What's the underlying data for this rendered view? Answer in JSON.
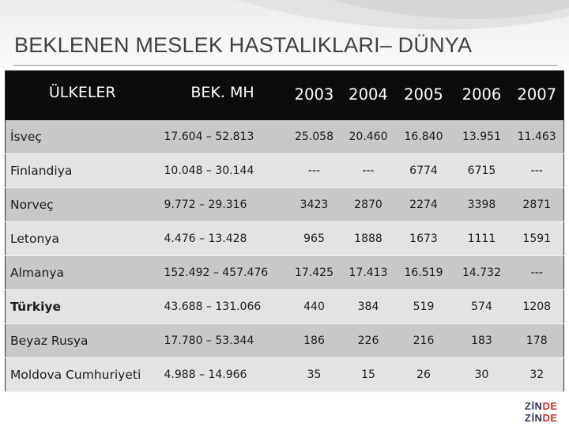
{
  "title": "BEKLENEN MESLEK HASTALIKLARI– DÜNYA",
  "table": {
    "headers": {
      "country": "ÜLKELER",
      "range": "BEK. MH",
      "years": [
        "2003",
        "2004",
        "2005",
        "2006",
        "2007"
      ]
    },
    "rows": [
      {
        "country": "İsveç",
        "range": "17.604 – 52.813",
        "values": [
          "25.058",
          "20.460",
          "16.840",
          "13.951",
          "11.463"
        ],
        "bold": false
      },
      {
        "country": "Finlandiya",
        "range": "10.048 – 30.144",
        "values": [
          "---",
          "---",
          "6774",
          "6715",
          "---"
        ],
        "bold": false
      },
      {
        "country": "Norveç",
        "range": "9.772 – 29.316",
        "values": [
          "3423",
          "2870",
          "2274",
          "3398",
          "2871"
        ],
        "bold": false
      },
      {
        "country": "Letonya",
        "range": "4.476 – 13.428",
        "values": [
          "965",
          "1888",
          "1673",
          "1111",
          "1591"
        ],
        "bold": false
      },
      {
        "country": "Almanya",
        "range": "152.492 – 457.476",
        "values": [
          "17.425",
          "17.413",
          "16.519",
          "14.732",
          "---"
        ],
        "bold": false
      },
      {
        "country": "Türkiye",
        "range": "43.688 – 131.066",
        "values": [
          "440",
          "384",
          "519",
          "574",
          "1208"
        ],
        "bold": true
      },
      {
        "country": "Beyaz Rusya",
        "range": "17.780 – 53.344",
        "values": [
          "186",
          "226",
          "216",
          "183",
          "178"
        ],
        "bold": false
      },
      {
        "country": "Moldova Cumhuriyeti",
        "range": "4.988 – 14.966",
        "values": [
          "35",
          "15",
          "26",
          "30",
          "32"
        ],
        "bold": false
      }
    ]
  },
  "logo": {
    "line1_a": "ZİN",
    "line1_b": "DE",
    "line2_a": "ZİN",
    "line2_b": "DE"
  }
}
